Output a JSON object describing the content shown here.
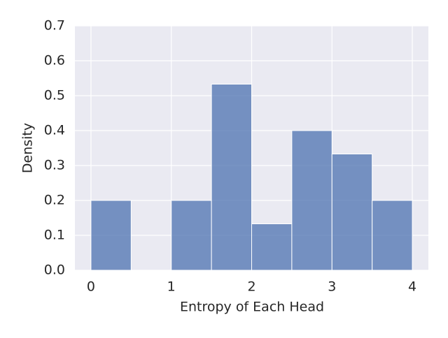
{
  "chart_data": {
    "type": "histogram",
    "xlabel": "Entropy of Each Head",
    "ylabel": "Density",
    "bins": [
      0,
      0.5,
      1,
      1.5,
      2,
      2.5,
      3,
      3.5,
      4
    ],
    "values": [
      0.2,
      0,
      0.2,
      0.533,
      0.133,
      0.4,
      0.333,
      0.2
    ],
    "color": "#4c72b0",
    "xlim": [
      -0.2,
      4.2
    ],
    "ylim": [
      0,
      0.7
    ],
    "xticks": [
      0,
      1,
      2,
      3,
      4
    ],
    "yticks": [
      {
        "value": 0,
        "label": "0.0"
      },
      0.1,
      0.2,
      0.3,
      0.4,
      0.5,
      0.6,
      0.7
    ],
    "grid": true
  }
}
